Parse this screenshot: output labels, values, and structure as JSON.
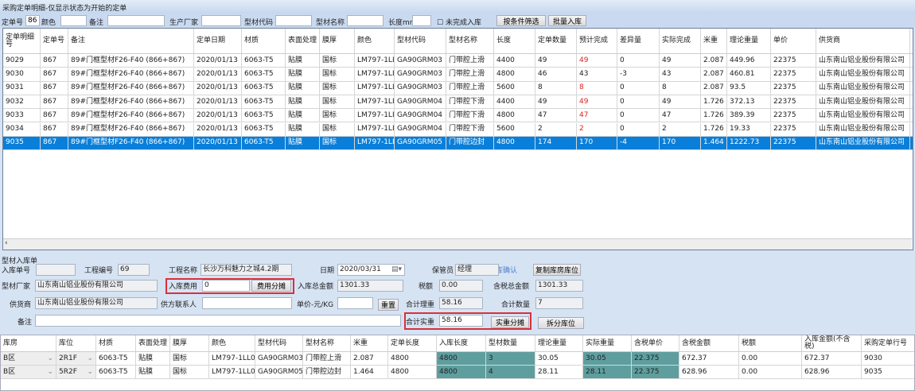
{
  "title": "采购定单明细-仅显示状态为开始的定单",
  "filter": {
    "order_no_label": "定单号",
    "order_no": "867",
    "color_label": "颜色",
    "color": "",
    "remark_label": "备注",
    "remark": "",
    "maker_label": "生产厂家",
    "maker": "",
    "code_label": "型材代码",
    "code": "",
    "name_label": "型材名称",
    "name": "",
    "length_label": "长度mm",
    "length": "",
    "unfinished_label": "未完成入库",
    "filter_button": "按条件筛选",
    "batch_button": "批量入库"
  },
  "top_table": {
    "columns": [
      "定单明细号",
      "定单号",
      "备注",
      "定单日期",
      "材质",
      "表面处理",
      "膜厚",
      "颜色",
      "型材代码",
      "型材名称",
      "长度",
      "定单数量",
      "预计完成",
      "差异量",
      "实际完成",
      "米重",
      "理论重量",
      "单价",
      "供货商",
      ""
    ],
    "rows": [
      [
        "9029",
        "867",
        "89#门框型材F26-F40 (866+867)",
        "2020/01/13",
        "6063-T5",
        "贴膜",
        "国标",
        "LM797-1LL0",
        "GA90GRM03",
        "门带腔上滑",
        "4400",
        "49",
        "49",
        "0",
        "49",
        "2.087",
        "449.96",
        "22375",
        "山东南山铝业股份有限公司",
        ""
      ],
      [
        "9030",
        "867",
        "89#门框型材F26-F40 (866+867)",
        "2020/01/13",
        "6063-T5",
        "贴膜",
        "国标",
        "LM797-1LL0",
        "GA90GRM03",
        "门带腔上滑",
        "4800",
        "46",
        "43",
        "-3",
        "43",
        "2.087",
        "460.81",
        "22375",
        "山东南山铝业股份有限公司",
        ""
      ],
      [
        "9031",
        "867",
        "89#门框型材F26-F40 (866+867)",
        "2020/01/13",
        "6063-T5",
        "贴膜",
        "国标",
        "LM797-1LL0",
        "GA90GRM03",
        "门带腔上滑",
        "5600",
        "8",
        "8",
        "0",
        "8",
        "2.087",
        "93.5",
        "22375",
        "山东南山铝业股份有限公司",
        ""
      ],
      [
        "9032",
        "867",
        "89#门框型材F26-F40 (866+867)",
        "2020/01/13",
        "6063-T5",
        "贴膜",
        "国标",
        "LM797-1LL0",
        "GA90GRM04",
        "门带腔下滑",
        "4400",
        "49",
        "49",
        "0",
        "49",
        "1.726",
        "372.13",
        "22375",
        "山东南山铝业股份有限公司",
        ""
      ],
      [
        "9033",
        "867",
        "89#门框型材F26-F40 (866+867)",
        "2020/01/13",
        "6063-T5",
        "贴膜",
        "国标",
        "LM797-1LL0",
        "GA90GRM04",
        "门带腔下滑",
        "4800",
        "47",
        "47",
        "0",
        "47",
        "1.726",
        "389.39",
        "22375",
        "山东南山铝业股份有限公司",
        ""
      ],
      [
        "9034",
        "867",
        "89#门框型材F26-F40 (866+867)",
        "2020/01/13",
        "6063-T5",
        "贴膜",
        "国标",
        "LM797-1LL0",
        "GA90GRM04",
        "门带腔下滑",
        "5600",
        "2",
        "2",
        "0",
        "2",
        "1.726",
        "19.33",
        "22375",
        "山东南山铝业股份有限公司",
        ""
      ],
      [
        "9035",
        "867",
        "89#门框型材F26-F40 (866+867)",
        "2020/01/13",
        "6063-T5",
        "贴膜",
        "国标",
        "LM797-1LL0",
        "GA90GRM05",
        "门带腔边封",
        "4800",
        "174",
        "170",
        "-4",
        "170",
        "1.464",
        "1222.73",
        "22375",
        "山东南山铝业股份有限公司",
        ""
      ]
    ],
    "red_values_in_expected": [
      true,
      false,
      true,
      true,
      true,
      true,
      false
    ],
    "selected_row": 6
  },
  "form": {
    "section_title": "型材入库单",
    "entry_no_label": "入库单号",
    "entry_no": "",
    "project_no_label": "工程编号",
    "project_no": "69",
    "project_name_label": "工程名称",
    "project_name": "长沙万科魅力之城4.2期",
    "date_label": "日期",
    "date": "2020/03/31",
    "keeper_label": "保管员",
    "keeper": "经理",
    "confirm_label": "入库确认",
    "copy_button": "复制库房库位",
    "maker_label": "型材厂家",
    "maker": "山东南山铝业股份有限公司",
    "fee_label": "入库费用",
    "fee": "0",
    "fee_split_button": "费用分摊",
    "total_label": "入库总金额",
    "total": "1301.33",
    "tax_label": "税额",
    "tax": "0.00",
    "total_tax_label": "含税总金额",
    "total_tax": "1301.33",
    "supplier_label": "供货商",
    "supplier": "山东南山铝业股份有限公司",
    "contact_label": "供方联系人",
    "contact": "",
    "unit_price_label": "单价-元/KG",
    "unit_price": "",
    "reset_button": "重置",
    "theory_weight_label": "合计理重",
    "theory_weight": "58.16",
    "qty_label": "合计数量",
    "qty": "7",
    "remark_label": "备注",
    "remark": "",
    "actual_weight_label": "合计实重",
    "actual_weight": "58.16",
    "weight_split_button": "实重分摊",
    "split_location_button": "拆分库位"
  },
  "bottom_table": {
    "columns": [
      "库房",
      "库位",
      "材质",
      "表面处理",
      "膜厚",
      "颜色",
      "型材代码",
      "型材名称",
      "米重",
      "定单长度",
      "入库长度",
      "型材数量",
      "理论重量",
      "实际重量",
      "含税单价",
      "含税金额",
      "税额",
      "入库金额(不含税)",
      "采购定单行号"
    ],
    "rows": [
      [
        "B区",
        "2R1F",
        "6063-T5",
        "贴膜",
        "国标",
        "LM797-1LL0",
        "GA90GRM03",
        "门带腔上滑",
        "2.087",
        "4800",
        "4800",
        "3",
        "30.05",
        "30.05",
        "22.375",
        "672.37",
        "0.00",
        "672.37",
        "9030"
      ],
      [
        "B区",
        "5R2F",
        "6063-T5",
        "贴膜",
        "国标",
        "LM797-1LL0",
        "GA90GRM05",
        "门带腔边封",
        "1.464",
        "4800",
        "4800",
        "4",
        "28.11",
        "28.11",
        "22.375",
        "628.96",
        "0.00",
        "628.96",
        "9035"
      ]
    ]
  },
  "colors": {
    "selection": "#0a7fd9",
    "highlight_cell": "#5f9e9e",
    "red_box": "#d9303c",
    "panel": "#d6e3f3"
  }
}
